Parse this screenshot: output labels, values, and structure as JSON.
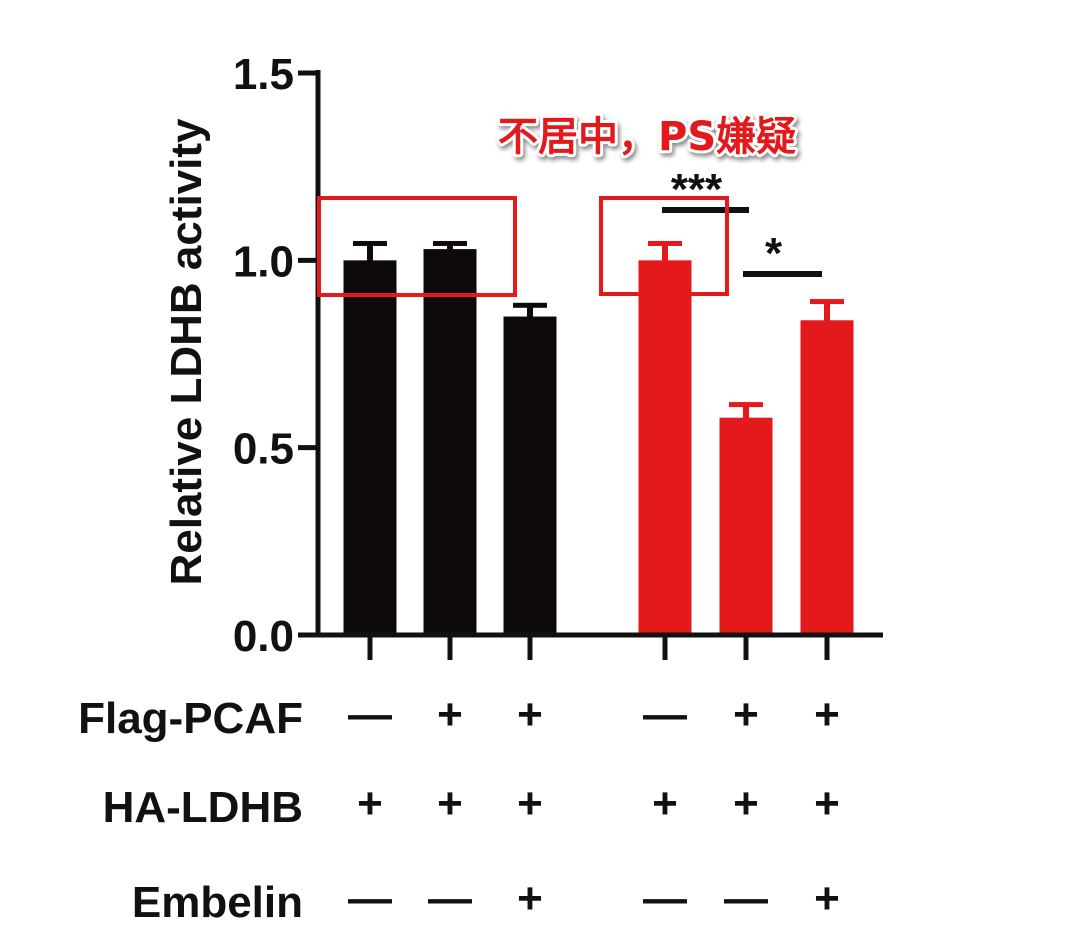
{
  "chart_data": {
    "type": "bar",
    "ylabel": "Relative LDHB activity",
    "ylim": [
      0,
      1.5
    ],
    "yticks": [
      0,
      0.5,
      1.0,
      1.5
    ],
    "ytick_labels": [
      "0.0",
      "0.5",
      "1.0",
      "1.5"
    ],
    "grid": false,
    "groups": [
      {
        "color": "#0e0a0b",
        "values": [
          1.0,
          1.03,
          0.85
        ],
        "errors": [
          0.045,
          0.015,
          0.03
        ]
      },
      {
        "color": "#e3191c",
        "values": [
          1.0,
          0.58,
          0.84
        ],
        "errors": [
          0.045,
          0.035,
          0.05
        ]
      }
    ],
    "conditions": [
      {
        "label": "Flag-PCAF",
        "marks": [
          "—",
          "+",
          "+",
          "—",
          "+",
          "+"
        ]
      },
      {
        "label": "HA-LDHB",
        "marks": [
          "+",
          "+",
          "+",
          "+",
          "+",
          "+"
        ]
      },
      {
        "label": "Embelin",
        "marks": [
          "—",
          "—",
          "+",
          "—",
          "—",
          "+"
        ]
      }
    ],
    "significance": [
      {
        "text": "***",
        "bars": [
          3,
          4
        ]
      },
      {
        "text": "*",
        "bars": [
          4,
          5
        ]
      }
    ]
  },
  "annotation": {
    "text": "不居中，PS嫌疑",
    "color": "#e3191c"
  }
}
